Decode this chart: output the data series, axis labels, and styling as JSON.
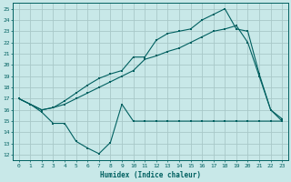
{
  "xlabel": "Humidex (Indice chaleur)",
  "bg_color": "#c8e8e8",
  "grid_color": "#a8c8c8",
  "line_color": "#006060",
  "xlim": [
    -0.5,
    23.5
  ],
  "ylim": [
    11.5,
    25.5
  ],
  "xticks": [
    0,
    1,
    2,
    3,
    4,
    5,
    6,
    7,
    8,
    9,
    10,
    11,
    12,
    13,
    14,
    15,
    16,
    17,
    18,
    19,
    20,
    21,
    22,
    23
  ],
  "yticks": [
    12,
    13,
    14,
    15,
    16,
    17,
    18,
    19,
    20,
    21,
    22,
    23,
    24,
    25
  ],
  "line1_x": [
    0,
    1,
    2,
    3,
    4,
    5,
    6,
    7,
    8,
    9,
    10,
    11,
    12,
    13,
    14,
    15,
    16,
    17,
    18,
    19,
    20,
    21,
    22,
    23
  ],
  "line1_y": [
    17.0,
    16.5,
    15.8,
    14.8,
    14.8,
    13.2,
    12.6,
    12.1,
    13.1,
    16.5,
    15.0,
    15.0,
    15.0,
    15.0,
    15.0,
    15.0,
    15.0,
    15.0,
    15.0,
    15.0,
    15.0,
    15.0,
    15.0,
    15.0
  ],
  "line2_x": [
    0,
    2,
    3,
    4,
    5,
    6,
    7,
    8,
    9,
    10,
    11,
    12,
    13,
    14,
    15,
    16,
    17,
    18,
    19,
    20,
    21,
    22,
    23
  ],
  "line2_y": [
    17.0,
    16.0,
    16.2,
    16.5,
    17.0,
    17.5,
    18.0,
    18.5,
    19.0,
    19.5,
    20.5,
    20.8,
    21.2,
    21.5,
    22.0,
    22.5,
    23.0,
    23.2,
    23.5,
    22.0,
    19.0,
    16.0,
    15.0
  ],
  "line3_x": [
    0,
    2,
    3,
    4,
    5,
    6,
    7,
    8,
    9,
    10,
    11,
    12,
    13,
    14,
    15,
    16,
    17,
    18,
    19,
    20,
    21,
    22,
    23
  ],
  "line3_y": [
    17.0,
    16.0,
    16.2,
    16.8,
    17.5,
    18.2,
    18.8,
    19.2,
    19.5,
    20.7,
    20.7,
    22.2,
    22.8,
    23.0,
    23.2,
    24.0,
    24.5,
    25.0,
    23.2,
    23.0,
    19.2,
    16.0,
    15.2
  ]
}
